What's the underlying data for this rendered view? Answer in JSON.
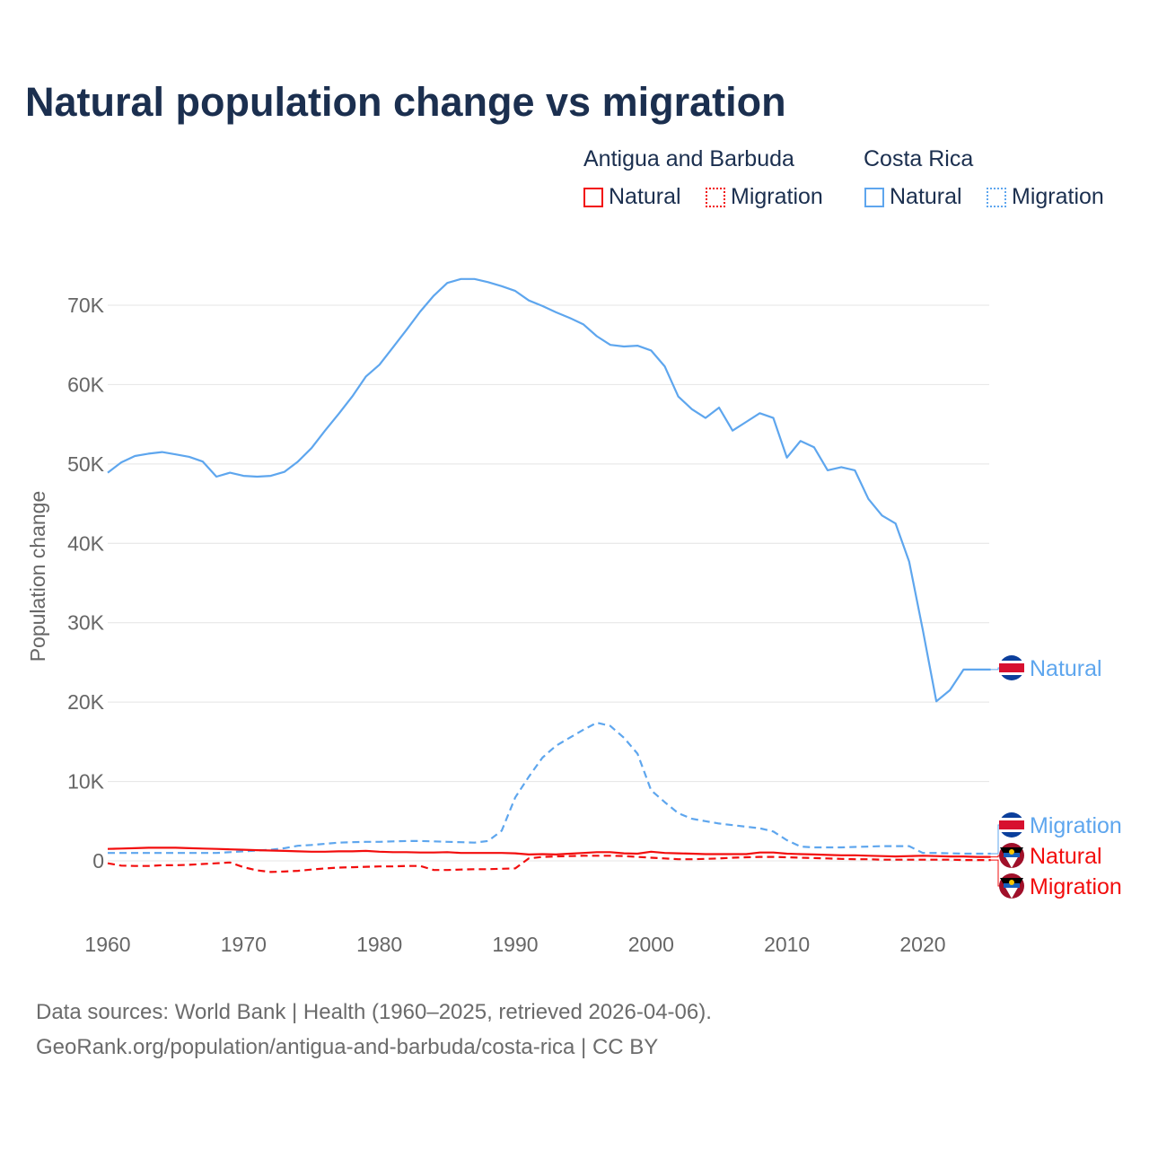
{
  "title": "Natural population change vs migration",
  "legend": {
    "groups": [
      {
        "name": "Antigua and Barbuda",
        "items": [
          "Natural",
          "Migration"
        ]
      },
      {
        "name": "Costa Rica",
        "items": [
          "Natural",
          "Migration"
        ]
      }
    ]
  },
  "colors": {
    "antigua": "#f20d0d",
    "costa_rica": "#5ea6ee",
    "title": "#1b2f4f"
  },
  "footer": {
    "line1": "Data sources: World Bank | Health (1960–2025, retrieved 2026-04-06).",
    "line2": "GeoRank.org/population/antigua-and-barbuda/costa-rica | CC BY"
  },
  "chart_data": {
    "type": "line",
    "title": "Natural population change vs migration",
    "xlabel": "",
    "ylabel": "Population change",
    "xlim": [
      1960,
      2025
    ],
    "ylim": [
      -5000,
      75000
    ],
    "x_ticks": [
      "1960",
      "1970",
      "1980",
      "1990",
      "2000",
      "2010",
      "2020"
    ],
    "y_ticks": [
      "0",
      "10K",
      "20K",
      "30K",
      "40K",
      "50K",
      "60K",
      "70K"
    ],
    "grid": true,
    "x": [
      1960,
      1961,
      1962,
      1963,
      1964,
      1965,
      1966,
      1967,
      1968,
      1969,
      1970,
      1971,
      1972,
      1973,
      1974,
      1975,
      1976,
      1977,
      1978,
      1979,
      1980,
      1981,
      1982,
      1983,
      1984,
      1985,
      1986,
      1987,
      1988,
      1989,
      1990,
      1991,
      1992,
      1993,
      1994,
      1995,
      1996,
      1997,
      1998,
      1999,
      2000,
      2001,
      2002,
      2003,
      2004,
      2005,
      2006,
      2007,
      2008,
      2009,
      2010,
      2011,
      2012,
      2013,
      2014,
      2015,
      2016,
      2017,
      2018,
      2019,
      2020,
      2021,
      2022,
      2023,
      2024,
      2025
    ],
    "series": [
      {
        "name": "Costa Rica Natural",
        "country": "Costa Rica",
        "label": "Natural",
        "style": "solid",
        "color": "#5ea6ee",
        "values": [
          48900,
          50200,
          51000,
          51300,
          51500,
          51200,
          50900,
          50300,
          48400,
          48900,
          48500,
          48400,
          48500,
          49000,
          50300,
          52000,
          54200,
          56300,
          58500,
          61000,
          62500,
          64700,
          66900,
          69200,
          71200,
          72800,
          73300,
          73300,
          72900,
          72400,
          71800,
          70600,
          69900,
          69100,
          68400,
          67600,
          66100,
          65000,
          64800,
          64900,
          64300,
          62300,
          58500,
          56900,
          55800,
          57100,
          54200,
          55300,
          56400,
          55800,
          50800,
          52900,
          52100,
          49200,
          49600,
          49200,
          45600,
          43500,
          42500,
          37700,
          29100,
          20100,
          21500,
          24100,
          24100,
          24100
        ]
      },
      {
        "name": "Costa Rica Migration",
        "country": "Costa Rica",
        "label": "Migration",
        "style": "dashed",
        "color": "#5ea6ee",
        "values": [
          1000,
          1000,
          1000,
          1000,
          1000,
          1000,
          1000,
          1000,
          1000,
          1100,
          1200,
          1300,
          1400,
          1600,
          1900,
          2000,
          2150,
          2300,
          2350,
          2400,
          2400,
          2450,
          2500,
          2500,
          2450,
          2400,
          2350,
          2300,
          2500,
          3800,
          8000,
          10600,
          13000,
          14500,
          15500,
          16500,
          17400,
          17000,
          15500,
          13500,
          8900,
          7400,
          6000,
          5300,
          5000,
          4700,
          4500,
          4300,
          4100,
          3700,
          2600,
          1800,
          1700,
          1700,
          1700,
          1750,
          1800,
          1850,
          1850,
          1850,
          1000,
          1000,
          950,
          900,
          900,
          900
        ]
      },
      {
        "name": "Antigua and Barbuda Natural",
        "country": "Antigua and Barbuda",
        "label": "Natural",
        "style": "solid",
        "color": "#f20d0d",
        "values": [
          1500,
          1550,
          1600,
          1650,
          1650,
          1650,
          1600,
          1550,
          1500,
          1450,
          1400,
          1350,
          1300,
          1250,
          1200,
          1150,
          1150,
          1200,
          1200,
          1250,
          1150,
          1100,
          1100,
          1050,
          1050,
          1100,
          1000,
          1000,
          1000,
          1000,
          950,
          800,
          850,
          800,
          900,
          1000,
          1100,
          1100,
          950,
          900,
          1150,
          1000,
          950,
          900,
          850,
          850,
          850,
          850,
          1050,
          1050,
          900,
          850,
          800,
          750,
          700,
          700,
          650,
          600,
          550,
          600,
          650,
          600,
          550,
          550,
          500,
          500
        ]
      },
      {
        "name": "Antigua and Barbuda Migration",
        "country": "Antigua and Barbuda",
        "label": "Migration",
        "style": "dashed",
        "color": "#f20d0d",
        "values": [
          -300,
          -600,
          -650,
          -650,
          -550,
          -550,
          -500,
          -400,
          -300,
          -200,
          -800,
          -1200,
          -1400,
          -1350,
          -1250,
          -1100,
          -950,
          -850,
          -800,
          -750,
          -700,
          -700,
          -650,
          -650,
          -1150,
          -1150,
          -1100,
          -1050,
          -1050,
          -1000,
          -950,
          300,
          500,
          550,
          600,
          650,
          650,
          650,
          600,
          500,
          400,
          300,
          200,
          200,
          250,
          300,
          400,
          450,
          500,
          500,
          450,
          400,
          350,
          300,
          250,
          200,
          200,
          150,
          150,
          150,
          150,
          150,
          150,
          100,
          100,
          100
        ]
      }
    ]
  }
}
